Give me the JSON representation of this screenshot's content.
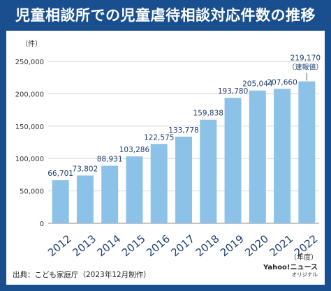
{
  "header": {
    "title": "児童相談所での児童虐待相談対応件数の推移"
  },
  "footer": {
    "source": "出典：こども家庭庁（2023年12月制作）",
    "brand_main": "Yahoo!ニュース",
    "brand_sub": "オリジナル"
  },
  "colors": {
    "header_bg": "#1a4f8f",
    "bar": "#8cc2e8",
    "label": "#1f3f70"
  },
  "chart_data": {
    "type": "bar",
    "categories": [
      "2012",
      "2013",
      "2014",
      "2015",
      "2016",
      "2017",
      "2018",
      "2019",
      "2020",
      "2021",
      "2022"
    ],
    "values": [
      66701,
      73802,
      88931,
      103286,
      122575,
      133778,
      159838,
      193780,
      205044,
      207660,
      219170
    ],
    "value_labels": [
      "66,701",
      "73,802",
      "88,931",
      "103,286",
      "122,575",
      "133,778",
      "159,838",
      "193,780",
      "205,044",
      "207,660",
      "219,170"
    ],
    "last_note": "（速報値）",
    "ylabel": "（件）",
    "xlabel": "（年度）",
    "ylim": [
      0,
      250000
    ],
    "yticks": [
      0,
      50000,
      100000,
      150000,
      200000,
      250000
    ],
    "ytick_labels": [
      "0",
      "50,000",
      "100,000",
      "150,000",
      "200,000",
      "250,000"
    ],
    "grid": true
  }
}
